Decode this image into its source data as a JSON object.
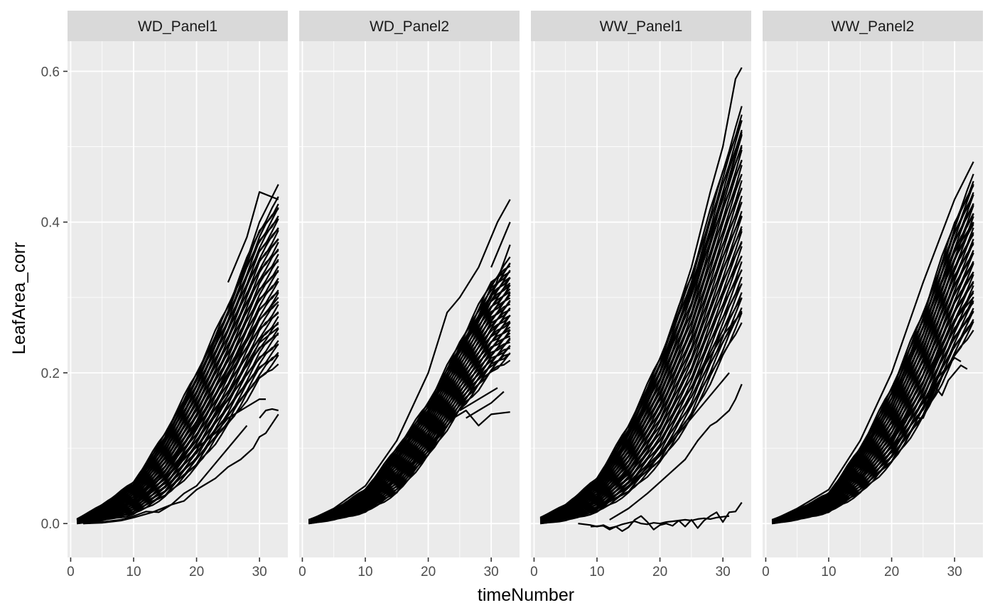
{
  "chart_data": {
    "type": "line",
    "facets": [
      "WD_Panel1",
      "WD_Panel2",
      "WW_Panel1",
      "WW_Panel2"
    ],
    "xlabel": "timeNumber",
    "ylabel": "LeafArea_corr",
    "x_ticks": [
      0,
      10,
      20,
      30
    ],
    "x_tick_labels": [
      "0",
      "10",
      "20",
      "30"
    ],
    "y_ticks": [
      0.0,
      0.2,
      0.4,
      0.6
    ],
    "y_tick_labels": [
      "0.0",
      "0.2",
      "0.4",
      "0.6"
    ],
    "xlim": [
      -0.5,
      34.5
    ],
    "ylim": [
      -0.045,
      0.64
    ],
    "grid": true,
    "line_color": "#000000",
    "panel_background": "#ebebeb",
    "strip_background": "#d9d9d9",
    "panels": [
      {
        "name": "WD_Panel1",
        "envelope": {
          "x": [
            1,
            5,
            10,
            15,
            20,
            25,
            30,
            33
          ],
          "y_low": [
            0.0,
            0.004,
            0.012,
            0.035,
            0.075,
            0.13,
            0.19,
            0.215
          ],
          "y_high": [
            0.006,
            0.025,
            0.055,
            0.12,
            0.2,
            0.29,
            0.39,
            0.43
          ]
        },
        "series": [
          {
            "x": [
              1,
              5,
              10,
              15,
              20,
              25,
              28,
              30,
              33
            ],
            "y": [
              0.004,
              0.02,
              0.048,
              0.11,
              0.19,
              0.28,
              0.35,
              0.4,
              0.45
            ]
          },
          {
            "x": [
              25,
              28,
              30,
              33
            ],
            "y": [
              0.32,
              0.38,
              0.44,
              0.43
            ]
          },
          {
            "x": [
              1,
              5,
              10,
              15,
              20,
              25,
              30,
              33
            ],
            "y": [
              0.003,
              0.012,
              0.03,
              0.07,
              0.13,
              0.2,
              0.27,
              0.3
            ]
          },
          {
            "x": [
              1,
              5,
              10,
              15,
              20,
              25,
              30,
              33
            ],
            "y": [
              0.002,
              0.009,
              0.025,
              0.06,
              0.11,
              0.17,
              0.24,
              0.26
            ]
          },
          {
            "x": [
              20,
              23,
              25,
              28,
              30,
              31
            ],
            "y": [
              0.1,
              0.12,
              0.14,
              0.155,
              0.165,
              0.165
            ]
          },
          {
            "x": [
              2,
              5,
              8,
              10,
              12,
              14,
              16,
              18,
              20,
              22,
              24,
              26,
              28
            ],
            "y": [
              0.0,
              0.002,
              0.005,
              0.01,
              0.016,
              0.015,
              0.025,
              0.04,
              0.05,
              0.07,
              0.09,
              0.11,
              0.13
            ]
          },
          {
            "x": [
              2,
              5,
              8,
              10,
              13,
              16,
              18,
              20,
              23,
              25,
              27,
              29,
              30,
              31,
              33
            ],
            "y": [
              0.0,
              0.001,
              0.004,
              0.008,
              0.015,
              0.025,
              0.03,
              0.045,
              0.06,
              0.075,
              0.085,
              0.1,
              0.115,
              0.12,
              0.145
            ]
          },
          {
            "x": [
              30,
              31,
              32,
              33
            ],
            "y": [
              0.14,
              0.15,
              0.152,
              0.15
            ]
          }
        ]
      },
      {
        "name": "WD_Panel2",
        "envelope": {
          "x": [
            1,
            5,
            10,
            15,
            20,
            25,
            30,
            33
          ],
          "y_low": [
            0.0,
            0.005,
            0.015,
            0.04,
            0.09,
            0.15,
            0.2,
            0.22
          ],
          "y_high": [
            0.005,
            0.018,
            0.045,
            0.1,
            0.16,
            0.24,
            0.32,
            0.35
          ]
        },
        "series": [
          {
            "x": [
              1,
              5,
              10,
              15,
              20,
              23,
              25,
              28,
              31,
              33
            ],
            "y": [
              0.004,
              0.02,
              0.05,
              0.11,
              0.2,
              0.28,
              0.3,
              0.34,
              0.4,
              0.43
            ]
          },
          {
            "x": [
              30,
              33
            ],
            "y": [
              0.34,
              0.4
            ]
          },
          {
            "x": [
              1,
              5,
              10,
              15,
              20,
              25,
              30,
              33
            ],
            "y": [
              0.003,
              0.015,
              0.04,
              0.085,
              0.15,
              0.23,
              0.3,
              0.37
            ]
          },
          {
            "x": [
              1,
              5,
              10,
              15,
              20,
              24,
              26,
              28,
              30,
              33
            ],
            "y": [
              0.002,
              0.01,
              0.025,
              0.06,
              0.1,
              0.14,
              0.15,
              0.13,
              0.145,
              0.148
            ]
          },
          {
            "x": [
              25,
              27,
              29,
              31
            ],
            "y": [
              0.15,
              0.16,
              0.17,
              0.18
            ]
          },
          {
            "x": [
              26,
              28,
              30,
              32
            ],
            "y": [
              0.14,
              0.15,
              0.16,
              0.175
            ]
          }
        ]
      },
      {
        "name": "WW_Panel1",
        "envelope": {
          "x": [
            1,
            5,
            10,
            15,
            20,
            25,
            30,
            33
          ],
          "y_low": [
            0.0,
            0.004,
            0.015,
            0.04,
            0.08,
            0.14,
            0.22,
            0.27
          ],
          "y_high": [
            0.008,
            0.025,
            0.06,
            0.13,
            0.22,
            0.33,
            0.47,
            0.55
          ]
        },
        "series": [
          {
            "x": [
              1,
              5,
              10,
              15,
              20,
              25,
              28,
              30,
              32,
              33
            ],
            "y": [
              0.005,
              0.022,
              0.055,
              0.12,
              0.21,
              0.34,
              0.44,
              0.5,
              0.59,
              0.605
            ]
          },
          {
            "x": [
              1,
              5,
              10,
              15,
              20,
              25,
              30,
              33
            ],
            "y": [
              0.004,
              0.018,
              0.05,
              0.11,
              0.2,
              0.31,
              0.43,
              0.52
            ]
          },
          {
            "x": [
              1,
              5,
              10,
              15,
              20,
              25,
              30,
              33
            ],
            "y": [
              0.002,
              0.01,
              0.03,
              0.07,
              0.12,
              0.18,
              0.25,
              0.28
            ]
          },
          {
            "x": [
              1,
              5,
              10,
              15,
              20,
              25,
              29,
              31
            ],
            "y": [
              0.001,
              0.006,
              0.02,
              0.05,
              0.09,
              0.14,
              0.18,
              0.2
            ]
          },
          {
            "x": [
              12,
              15,
              18,
              20,
              22,
              24,
              26,
              28,
              29,
              31,
              32,
              33
            ],
            "y": [
              0.005,
              0.02,
              0.04,
              0.055,
              0.07,
              0.085,
              0.11,
              0.13,
              0.135,
              0.15,
              0.165,
              0.185
            ]
          },
          {
            "x": [
              7,
              9,
              10,
              11,
              12,
              13,
              14,
              15,
              16,
              17,
              18,
              19,
              20,
              21,
              22,
              23,
              24,
              25,
              26,
              27,
              28,
              29,
              30,
              31
            ],
            "y": [
              0.0,
              -0.002,
              -0.004,
              -0.002,
              -0.006,
              -0.004,
              -0.001,
              0.001,
              0.003,
              0.0,
              -0.001,
              0.001,
              0.0,
              0.002,
              0.003,
              0.004,
              0.005,
              0.004,
              0.006,
              0.007,
              0.006,
              0.008,
              0.009,
              0.01
            ]
          },
          {
            "x": [
              9,
              11,
              12,
              13,
              14,
              15,
              16,
              17,
              18,
              19,
              20,
              21,
              22,
              23,
              24,
              25,
              26,
              27,
              28,
              29,
              30,
              31,
              32,
              33
            ],
            "y": [
              -0.004,
              -0.003,
              -0.008,
              -0.004,
              -0.01,
              -0.005,
              0.005,
              0.01,
              0.002,
              -0.008,
              -0.002,
              0.0,
              -0.003,
              0.004,
              -0.004,
              0.005,
              -0.006,
              0.004,
              0.01,
              0.015,
              0.002,
              0.015,
              0.016,
              0.028
            ]
          }
        ]
      },
      {
        "name": "WW_Panel2",
        "envelope": {
          "x": [
            1,
            5,
            10,
            15,
            20,
            25,
            30,
            33
          ],
          "y_low": [
            0.0,
            0.005,
            0.015,
            0.04,
            0.08,
            0.14,
            0.22,
            0.26
          ],
          "y_high": [
            0.005,
            0.018,
            0.04,
            0.1,
            0.18,
            0.28,
            0.4,
            0.46
          ]
        },
        "series": [
          {
            "x": [
              1,
              5,
              10,
              15,
              20,
              25,
              30,
              33
            ],
            "y": [
              0.004,
              0.02,
              0.045,
              0.11,
              0.2,
              0.32,
              0.43,
              0.48
            ]
          },
          {
            "x": [
              1,
              5,
              10,
              15,
              20,
              25,
              30,
              33
            ],
            "y": [
              0.003,
              0.015,
              0.04,
              0.09,
              0.16,
              0.26,
              0.36,
              0.4
            ]
          },
          {
            "x": [
              1,
              5,
              10,
              15,
              20,
              25,
              30,
              33
            ],
            "y": [
              0.002,
              0.01,
              0.03,
              0.06,
              0.11,
              0.18,
              0.27,
              0.3
            ]
          },
          {
            "x": [
              20,
              22,
              24,
              25,
              26,
              27,
              28,
              29,
              30,
              31,
              32
            ],
            "y": [
              0.1,
              0.12,
              0.14,
              0.14,
              0.16,
              0.18,
              0.17,
              0.19,
              0.2,
              0.21,
              0.205
            ]
          },
          {
            "x": [
              25,
              26,
              27,
              28,
              29,
              30,
              31
            ],
            "y": [
              0.16,
              0.17,
              0.19,
              0.2,
              0.21,
              0.22,
              0.215
            ]
          }
        ]
      }
    ]
  }
}
